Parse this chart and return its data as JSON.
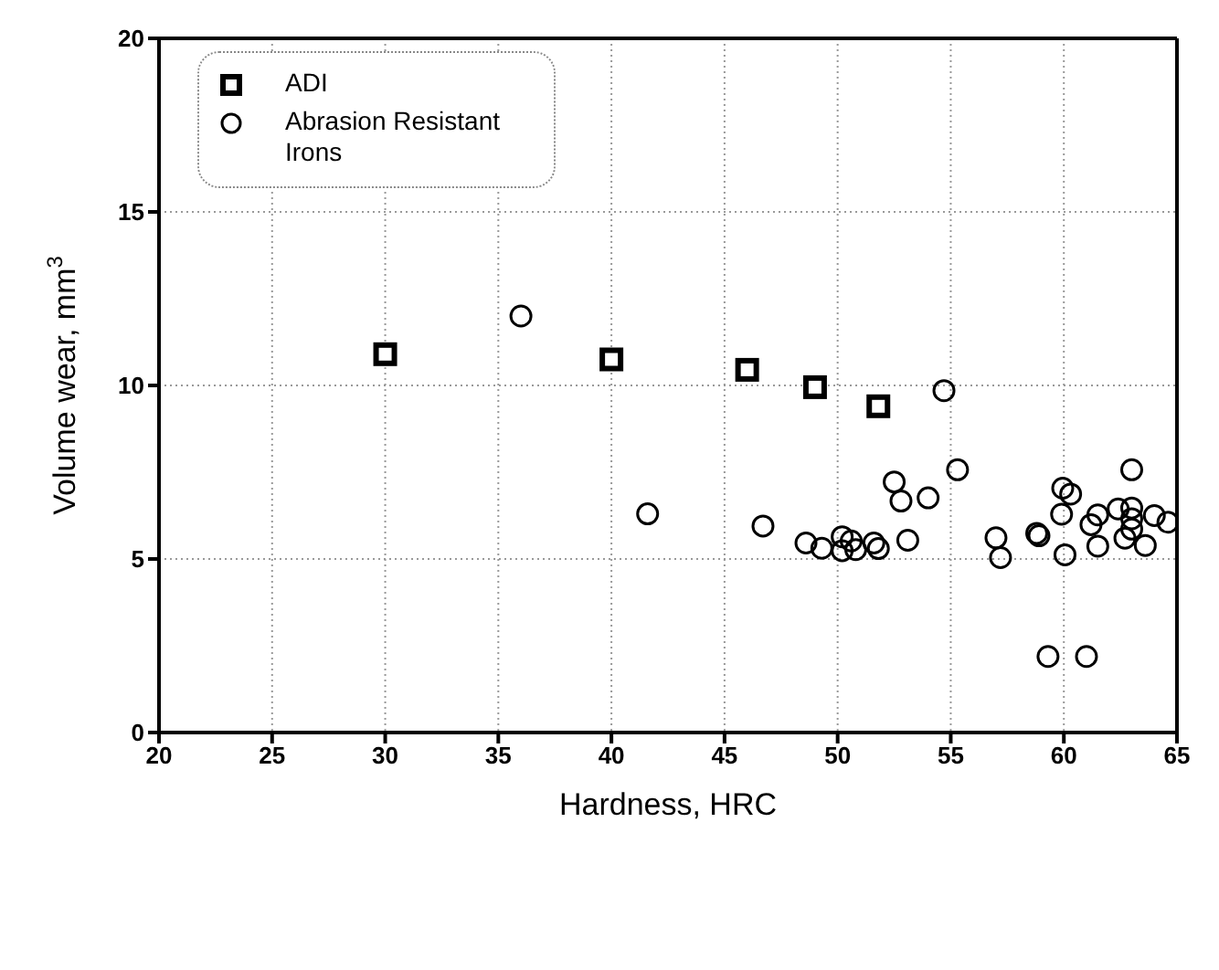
{
  "chart_data": {
    "type": "scatter",
    "xlabel": "Hardness, HRC",
    "ylabel": "Volume wear, mm$^{3}$",
    "xlim": [
      20,
      65
    ],
    "xticks": [
      20,
      25,
      30,
      35,
      40,
      45,
      50,
      55,
      60,
      65
    ],
    "ylim": [
      0,
      20
    ],
    "yticks": [
      0,
      5,
      10,
      15,
      20
    ],
    "grid": true,
    "legend": "top left",
    "series": [
      {
        "name": "ADI",
        "color": "#000000",
        "marker": "square",
        "x": [
          30,
          40,
          46,
          49,
          51.8
        ],
        "values": [
          10.9,
          10.75,
          10.45,
          9.95,
          9.4
        ]
      },
      {
        "name": "Abrasion Resistant Irons",
        "color": "#000000",
        "marker": "circle",
        "x": [
          36,
          41.6,
          46.7,
          48.6,
          49.3,
          50.2,
          50.6,
          50.2,
          50.8,
          51.6,
          51.8,
          53.1,
          52.5,
          52.8,
          54.0,
          54.7,
          55.3,
          57.0,
          57.2,
          58.8,
          58.9,
          59.3,
          59.9,
          59.95,
          60.3,
          60.05,
          61.0,
          61.2,
          61.5,
          61.5,
          62.4,
          63.0,
          63.0,
          63.0,
          63.0,
          62.7,
          63.6,
          64.0,
          64.6
        ],
        "values": [
          12.0,
          6.3,
          5.95,
          5.46,
          5.31,
          5.64,
          5.52,
          5.24,
          5.27,
          5.46,
          5.3,
          5.54,
          7.22,
          6.67,
          6.76,
          9.85,
          7.57,
          5.61,
          5.04,
          5.74,
          5.67,
          2.19,
          6.29,
          7.04,
          6.87,
          5.12,
          2.19,
          5.99,
          6.27,
          5.37,
          6.44,
          7.57,
          6.47,
          6.16,
          5.86,
          5.6,
          5.39,
          6.25,
          6.06
        ]
      }
    ]
  }
}
